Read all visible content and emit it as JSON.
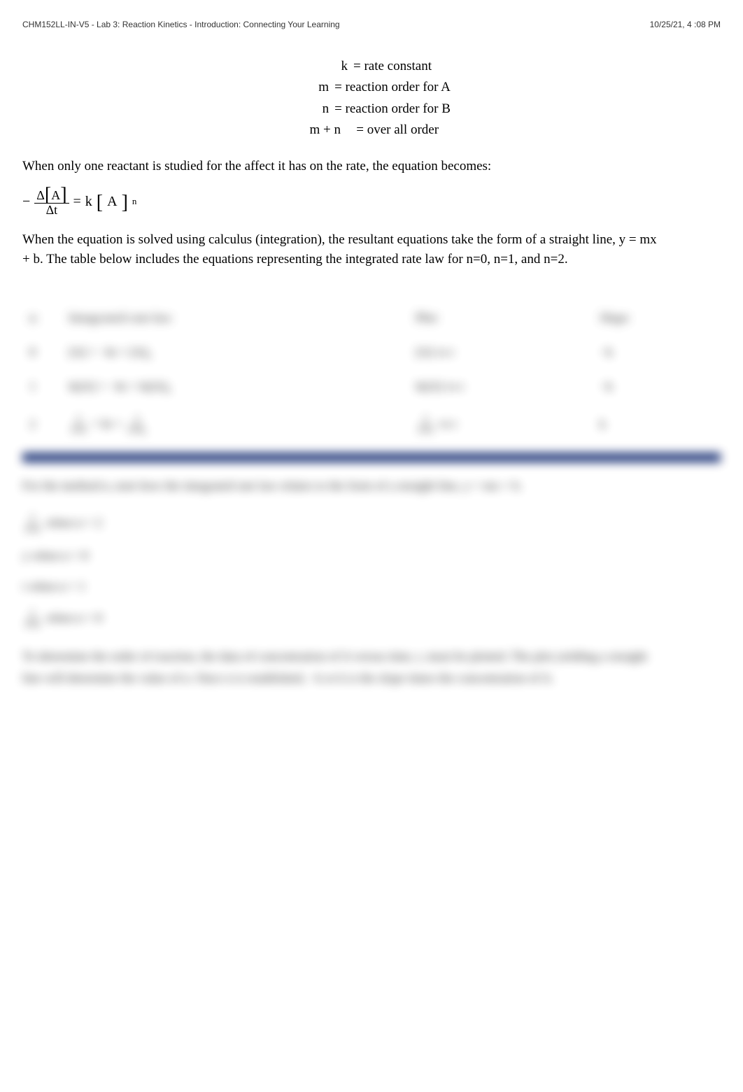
{
  "header": {
    "left": "CHM152LL-IN-V5 - Lab 3: Reaction Kinetics - Introduction: Connecting Your Learning",
    "right": "10/25/21, 4   :08 PM"
  },
  "definitions": [
    {
      "sym": "k",
      "eq": "=",
      "val": "rate constant"
    },
    {
      "sym": "m",
      "eq": "=",
      "val": "reaction order for A"
    },
    {
      "sym": "n",
      "eq": "=",
      "val": "reaction order for B"
    },
    {
      "sym": "m + n",
      "eq": "=",
      "val": "over all order"
    }
  ],
  "para1": "When only one reactant is studied for the affect it has on the rate, the equation becomes:",
  "equation": {
    "minus": "−",
    "delta": "Δ",
    "A": "A",
    "t": "t",
    "equals": "=",
    "k": "k",
    "exp": "n"
  },
  "para2": "When the equation is solved using calculus (integration), the resultant equations take the form of a straight line, y = mx + b. The table below includes the equations representing the integrated rate law for n=0, n=1, and n=2.",
  "table": {
    "headers": {
      "n": "n",
      "law": "Integrated rate law",
      "plot": "Plot",
      "slope": "Slope"
    },
    "rows": [
      {
        "n": "0",
        "law": "[A] = −kt + [A]₀",
        "plot": "[A] vs t",
        "slope": "−k"
      },
      {
        "n": "1",
        "law": "ln[A] = −kt + ln[A]₀",
        "plot": "ln[A] vs t",
        "slope": "−k"
      },
      {
        "n": "2",
        "law_num1": "1",
        "law_den1": "[A]",
        "law_mid": " = kt + ",
        "law_num2": "1",
        "law_den2": "[A]₀",
        "plot_num": "1",
        "plot_den": "[A]",
        "plot_tail": " vs t",
        "slope": "k"
      }
    ]
  },
  "blurred": {
    "line1": "For the method n, note how the integrated rate law relates to the form of a straight line, y = mx + b.",
    "line2_pre": "1",
    "line2_den": "[A]",
    "line2_tail": " when n = 2",
    "line3": "y when n = 0",
    "line4": "t when n = 1",
    "line5_pre": "1",
    "line5_den": "[A]",
    "line5_tail": " when n = 0",
    "para": "To determine the order of reaction, the data of concentration of A versus time, t, must be plotted. The plot yielding a straight line will determine the value of n. Once n is established, −k or k is the slope times the concentration of A."
  },
  "colors": {
    "text": "#000000",
    "header_text": "#333333",
    "blur_text": "#555555",
    "rule": "#001a66",
    "background": "#ffffff"
  }
}
